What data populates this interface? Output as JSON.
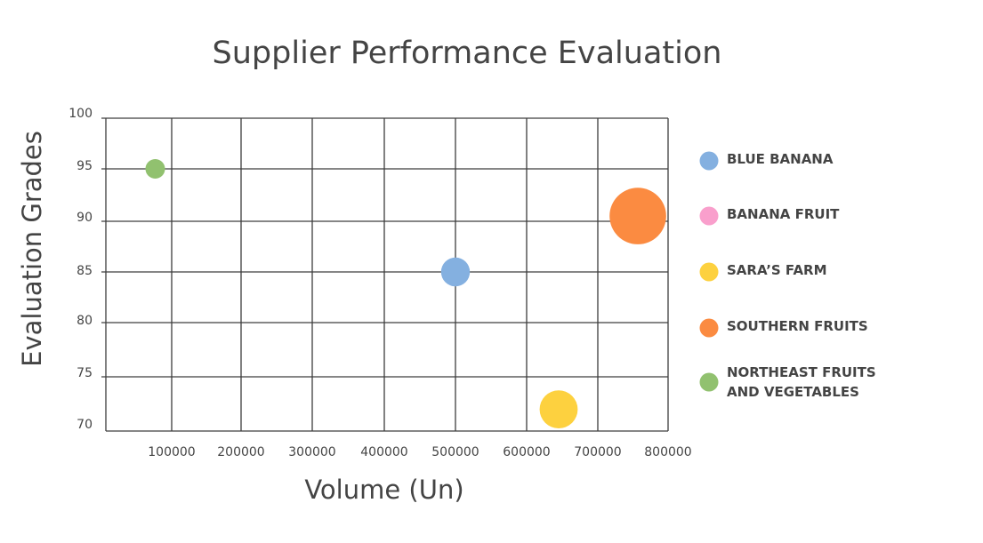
{
  "chart_data": {
    "type": "bubble",
    "title": "Supplier Performance Evaluation",
    "xlabel": "Volume (Un)",
    "ylabel": "Evaluation Grades",
    "x_ticks": [
      100000,
      200000,
      300000,
      400000,
      500000,
      600000,
      700000,
      800000
    ],
    "y_ticks": [
      70,
      75,
      80,
      85,
      90,
      95,
      100
    ],
    "grid": true,
    "legend_position": "right",
    "series": [
      {
        "name": "BLUE BANANA",
        "color": "#84b0e0",
        "x": 500000,
        "y": 85,
        "size": 2
      },
      {
        "name": "BANANA FRUIT",
        "color": "#f99fcc",
        "x": null,
        "y": null,
        "size": null
      },
      {
        "name": "SARA’S FARM",
        "color": "#fdd13f",
        "x": 645000,
        "y": 72,
        "size": 3
      },
      {
        "name": "SOUTHERN FRUITS",
        "color": "#fb8b41",
        "x": 757000,
        "y": 90.5,
        "size": 5
      },
      {
        "name": "NORTHEAST FRUITS AND VEGETABLES",
        "color": "#91c16f",
        "x": 75000,
        "y": 95,
        "size": 1
      }
    ]
  }
}
